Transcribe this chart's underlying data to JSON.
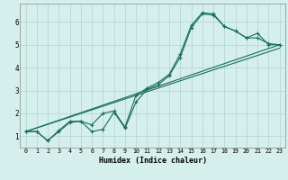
{
  "xlabel": "Humidex (Indice chaleur)",
  "background_color": "#d4efec",
  "grid_color": "#b8d8d4",
  "line_color": "#1a6b5e",
  "xlim": [
    -0.5,
    23.5
  ],
  "ylim": [
    0.5,
    6.8
  ],
  "xticks": [
    0,
    1,
    2,
    3,
    4,
    5,
    6,
    7,
    8,
    9,
    10,
    11,
    12,
    13,
    14,
    15,
    16,
    17,
    18,
    19,
    20,
    21,
    22,
    23
  ],
  "yticks": [
    1,
    2,
    3,
    4,
    5,
    6
  ],
  "series_jagged_1": {
    "x": [
      0,
      1,
      2,
      3,
      4,
      5,
      6,
      7,
      8,
      9,
      10,
      11,
      12,
      13,
      14,
      15,
      16,
      17,
      18,
      19,
      20,
      21,
      22,
      23
    ],
    "y": [
      1.2,
      1.2,
      0.8,
      1.2,
      1.6,
      1.65,
      1.2,
      1.3,
      2.05,
      1.35,
      2.5,
      3.05,
      3.25,
      3.65,
      4.45,
      5.75,
      6.35,
      6.3,
      5.8,
      5.6,
      5.3,
      5.5,
      5.0,
      5.0
    ]
  },
  "series_jagged_2": {
    "x": [
      0,
      1,
      2,
      3,
      4,
      5,
      6,
      7,
      8,
      9,
      10,
      11,
      12,
      13,
      14,
      15,
      16,
      17,
      18,
      19,
      20,
      21,
      22,
      23
    ],
    "y": [
      1.2,
      1.2,
      0.8,
      1.25,
      1.65,
      1.65,
      1.5,
      2.0,
      2.1,
      1.4,
      2.8,
      3.1,
      3.35,
      3.7,
      4.6,
      5.85,
      6.4,
      6.35,
      5.8,
      5.6,
      5.3,
      5.3,
      5.05,
      5.0
    ]
  },
  "series_line_1": {
    "x": [
      0,
      23
    ],
    "y": [
      1.2,
      5.0
    ]
  },
  "series_line_2": {
    "x": [
      0,
      23
    ],
    "y": [
      1.2,
      4.85
    ]
  }
}
